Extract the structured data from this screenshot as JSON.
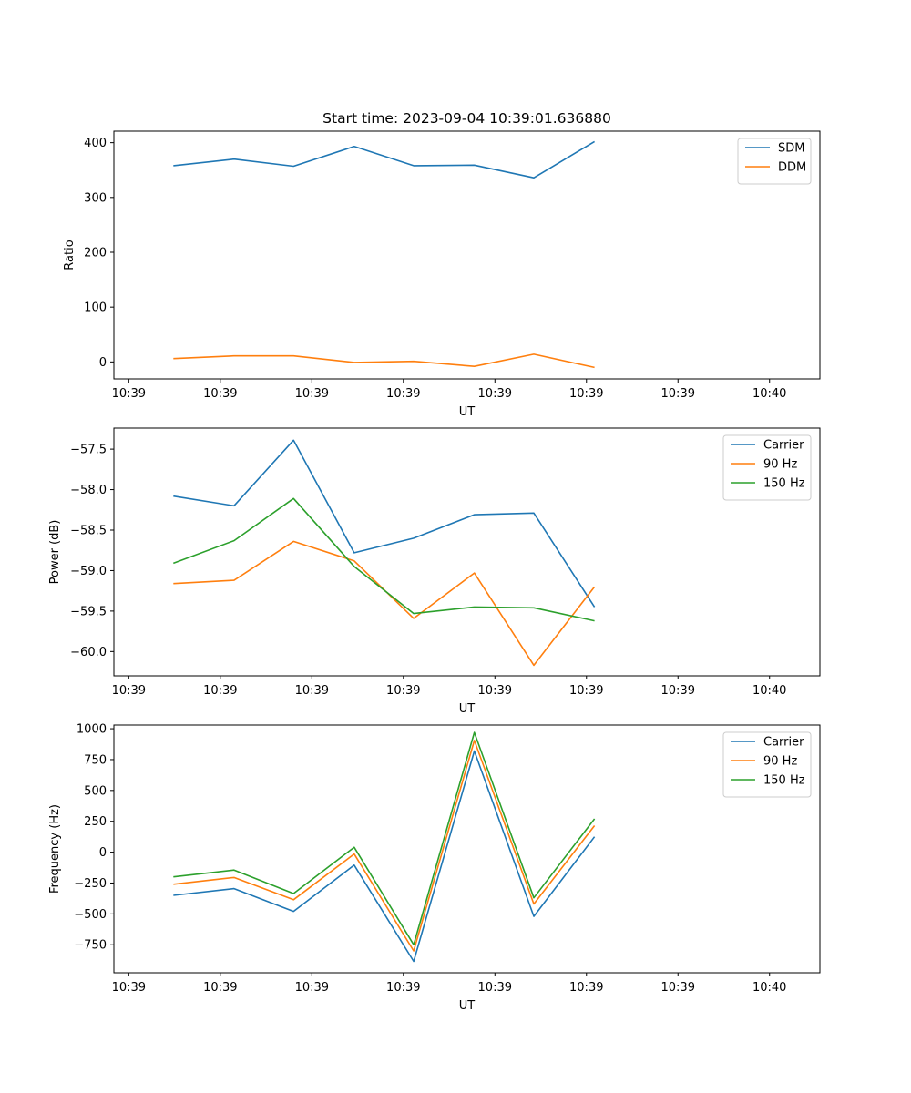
{
  "chart_data": [
    {
      "type": "line",
      "title": "Start time: 2023-09-04 10:39:01.636880",
      "xlabel": "UT",
      "ylabel": "Ratio",
      "xlim": [
        0,
        6.17
      ],
      "ylim": [
        -31,
        421
      ],
      "x_ticks": [
        0.13,
        0.93,
        1.73,
        2.53,
        3.33,
        4.13,
        4.93,
        5.73
      ],
      "x_tick_labels": [
        "10:39",
        "10:39",
        "10:39",
        "10:39",
        "10:39",
        "10:39",
        "10:39",
        "10:40"
      ],
      "y_ticks": [
        0,
        100,
        200,
        300,
        400
      ],
      "y_tick_labels": [
        "0",
        "100",
        "200",
        "300",
        "400"
      ],
      "x": [
        0.52,
        1.05,
        1.57,
        2.1,
        2.62,
        3.15,
        3.67,
        4.2
      ],
      "series": [
        {
          "name": "SDM",
          "color": "#1f77b4",
          "values": [
            358,
            370,
            357,
            393,
            358,
            359,
            336,
            402
          ]
        },
        {
          "name": "DDM",
          "color": "#ff7f0e",
          "values": [
            6,
            11,
            11,
            -1,
            1,
            -8,
            14,
            -10
          ]
        }
      ],
      "legend": "upper right"
    },
    {
      "type": "line",
      "title": "",
      "xlabel": "UT",
      "ylabel": "Power (dB)",
      "xlim": [
        0,
        6.17
      ],
      "ylim": [
        -60.3,
        -57.24
      ],
      "x_ticks": [
        0.13,
        0.93,
        1.73,
        2.53,
        3.33,
        4.13,
        4.93,
        5.73
      ],
      "x_tick_labels": [
        "10:39",
        "10:39",
        "10:39",
        "10:39",
        "10:39",
        "10:39",
        "10:39",
        "10:40"
      ],
      "y_ticks": [
        -60.0,
        -59.5,
        -59.0,
        -58.5,
        -58.0,
        -57.5
      ],
      "y_tick_labels": [
        "−60.0",
        "−59.5",
        "−59.0",
        "−58.5",
        "−58.0",
        "−57.5"
      ],
      "x": [
        0.52,
        1.05,
        1.57,
        2.1,
        2.62,
        3.15,
        3.67,
        4.2
      ],
      "series": [
        {
          "name": "Carrier",
          "color": "#1f77b4",
          "values": [
            -58.08,
            -58.2,
            -57.39,
            -58.78,
            -58.6,
            -58.31,
            -58.29,
            -59.45
          ]
        },
        {
          "name": "90 Hz",
          "color": "#ff7f0e",
          "values": [
            -59.16,
            -59.12,
            -58.64,
            -58.88,
            -59.59,
            -59.03,
            -60.17,
            -59.2
          ]
        },
        {
          "name": "150 Hz",
          "color": "#2ca02c",
          "values": [
            -58.91,
            -58.63,
            -58.11,
            -58.95,
            -59.53,
            -59.45,
            -59.46,
            -59.62
          ]
        }
      ],
      "legend": "upper right"
    },
    {
      "type": "line",
      "title": "",
      "xlabel": "UT",
      "ylabel": "Frequency (Hz)",
      "xlim": [
        0,
        6.17
      ],
      "ylim": [
        -977,
        1030
      ],
      "x_ticks": [
        0.13,
        0.93,
        1.73,
        2.53,
        3.33,
        4.13,
        4.93,
        5.73
      ],
      "x_tick_labels": [
        "10:39",
        "10:39",
        "10:39",
        "10:39",
        "10:39",
        "10:39",
        "10:39",
        "10:40"
      ],
      "y_ticks": [
        -750,
        -500,
        -250,
        0,
        250,
        500,
        750,
        1000
      ],
      "y_tick_labels": [
        "−750",
        "−500",
        "−250",
        "0",
        "250",
        "500",
        "750",
        "1000"
      ],
      "x": [
        0.52,
        1.05,
        1.57,
        2.1,
        2.62,
        3.15,
        3.67,
        4.2
      ],
      "series": [
        {
          "name": "Carrier",
          "color": "#1f77b4",
          "values": [
            -350,
            -295,
            -480,
            -105,
            -885,
            820,
            -520,
            125
          ]
        },
        {
          "name": "90 Hz",
          "color": "#ff7f0e",
          "values": [
            -260,
            -205,
            -385,
            -15,
            -800,
            905,
            -420,
            215
          ]
        },
        {
          "name": "150 Hz",
          "color": "#2ca02c",
          "values": [
            -200,
            -145,
            -335,
            40,
            -750,
            970,
            -370,
            270
          ]
        }
      ],
      "legend": "upper right"
    }
  ]
}
